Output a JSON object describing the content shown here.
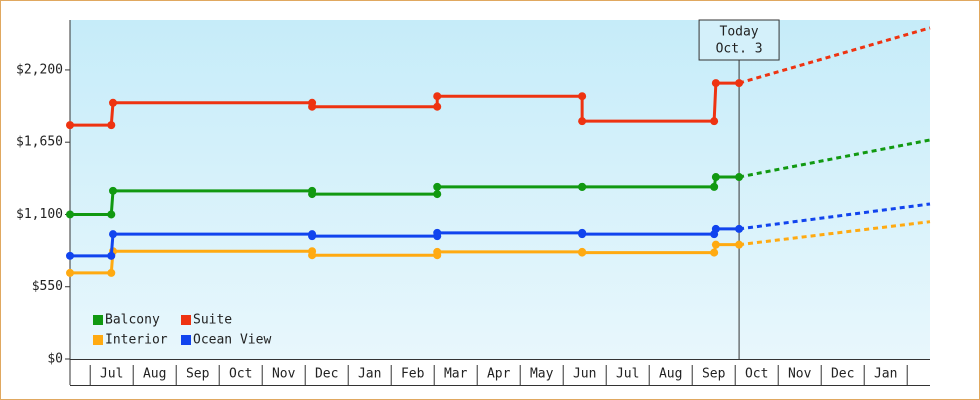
{
  "chart_data": {
    "type": "step-line",
    "categories": [
      "Jul",
      "Aug",
      "Sep",
      "Oct",
      "Nov",
      "Dec",
      "Jan",
      "Feb",
      "Mar",
      "Apr",
      "May",
      "Jun",
      "Jul",
      "Aug",
      "Sep",
      "Oct",
      "Nov",
      "Dec",
      "Jan"
    ],
    "x": [
      -0.47,
      0.49,
      0.53,
      5.16,
      5.16,
      8.07,
      8.07,
      11.44,
      11.44,
      14.51,
      14.55,
      15.09
    ],
    "forecast_x": [
      15.09,
      19.53
    ],
    "xlim": [
      -0.47,
      19.53
    ],
    "ylim": [
      0,
      2580
    ],
    "yticks": [
      {
        "value": 0,
        "label": "$0"
      },
      {
        "value": 550,
        "label": "$550"
      },
      {
        "value": 1100,
        "label": "$1,100"
      },
      {
        "value": 1650,
        "label": "$1,650"
      },
      {
        "value": 2200,
        "label": "$2,200"
      }
    ],
    "series": [
      {
        "name": "Balcony",
        "color": "#119911",
        "values": [
          1100,
          1100,
          1280,
          1280,
          1255,
          1255,
          1310,
          1310,
          1310,
          1310,
          1385,
          1385
        ],
        "forecast": [
          1385,
          1667
        ]
      },
      {
        "name": "Suite",
        "color": "#ee3311",
        "values": [
          1780,
          1780,
          1950,
          1950,
          1920,
          1920,
          2000,
          2000,
          1810,
          1810,
          2100,
          2100
        ],
        "forecast": [
          2100,
          2520
        ]
      },
      {
        "name": "Interior",
        "color": "#ffaa11",
        "values": [
          655,
          655,
          820,
          820,
          790,
          790,
          815,
          815,
          810,
          810,
          870,
          870
        ],
        "forecast": [
          870,
          1045
        ]
      },
      {
        "name": "Ocean View",
        "color": "#1144ee",
        "values": [
          785,
          785,
          950,
          950,
          935,
          935,
          960,
          960,
          950,
          950,
          990,
          990
        ],
        "forecast": [
          990,
          1180
        ]
      }
    ],
    "annotation": {
      "x": 15.09,
      "lines": [
        "Today",
        "Oct. 3"
      ]
    }
  }
}
